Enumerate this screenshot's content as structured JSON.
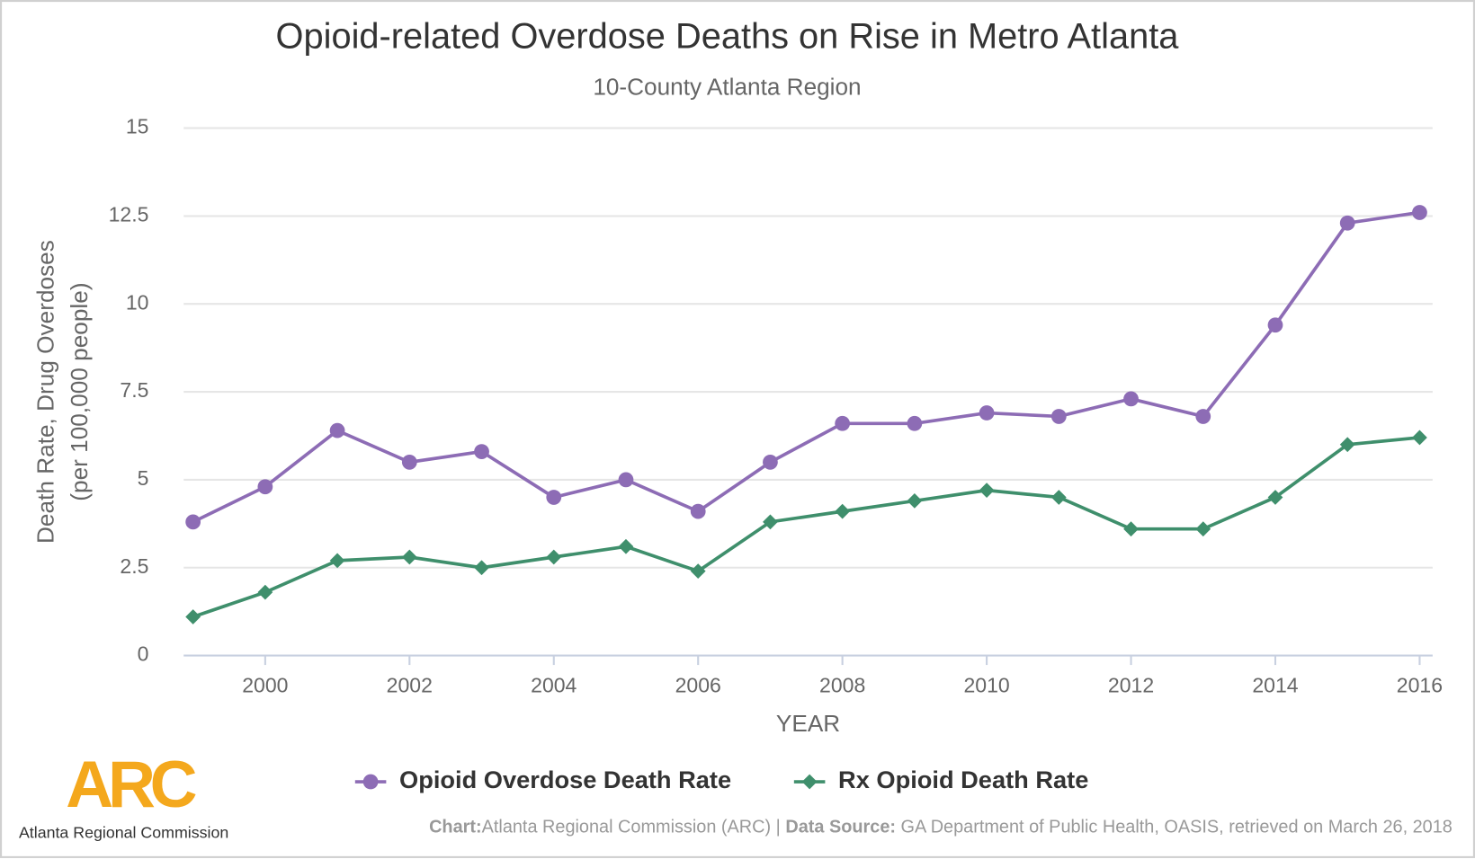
{
  "chart_data": {
    "type": "line",
    "title": "Opioid-related Overdose Deaths on Rise in Metro Atlanta",
    "subtitle": "10-County Atlanta Region",
    "y_label": [
      "Death Rate, Drug Overdoses",
      "(per 100,000 people)"
    ],
    "x_label": "YEAR",
    "x": [
      1999,
      2000,
      2001,
      2002,
      2003,
      2004,
      2005,
      2006,
      2007,
      2008,
      2009,
      2010,
      2011,
      2012,
      2013,
      2014,
      2015,
      2016
    ],
    "series": [
      {
        "name": "Opioid Overdose Death Rate",
        "color": "#8d6cb5",
        "marker": "circle",
        "values": [
          3.8,
          4.8,
          6.4,
          5.5,
          5.8,
          4.5,
          5.0,
          4.1,
          5.5,
          6.6,
          6.6,
          6.9,
          6.8,
          7.3,
          6.8,
          9.4,
          12.3,
          12.6
        ]
      },
      {
        "name": "Rx Opioid Death Rate",
        "color": "#3f8f6c",
        "marker": "diamond",
        "values": [
          1.1,
          1.8,
          2.7,
          2.8,
          2.5,
          2.8,
          3.1,
          2.4,
          3.8,
          4.1,
          4.4,
          4.7,
          4.5,
          3.6,
          3.6,
          4.5,
          6.0,
          6.2
        ]
      }
    ],
    "xlim": [
      1998.87,
      2016.18
    ],
    "xticks": [
      2000,
      2002,
      2004,
      2006,
      2008,
      2010,
      2012,
      2014,
      2016
    ],
    "ylim": [
      0,
      15
    ],
    "yticks": [
      0,
      2.5,
      5,
      7.5,
      10,
      12.5,
      15
    ],
    "grid": true,
    "legend": "bottom",
    "logo": {
      "mark": "ARC",
      "name": "Atlanta Regional Commission"
    },
    "credits": [
      "Chart:",
      "Atlanta Regional Commission (ARC) | ",
      "Data Source:",
      " GA Department of Public Health, OASIS, retrieved on March 26, 2018"
    ]
  }
}
